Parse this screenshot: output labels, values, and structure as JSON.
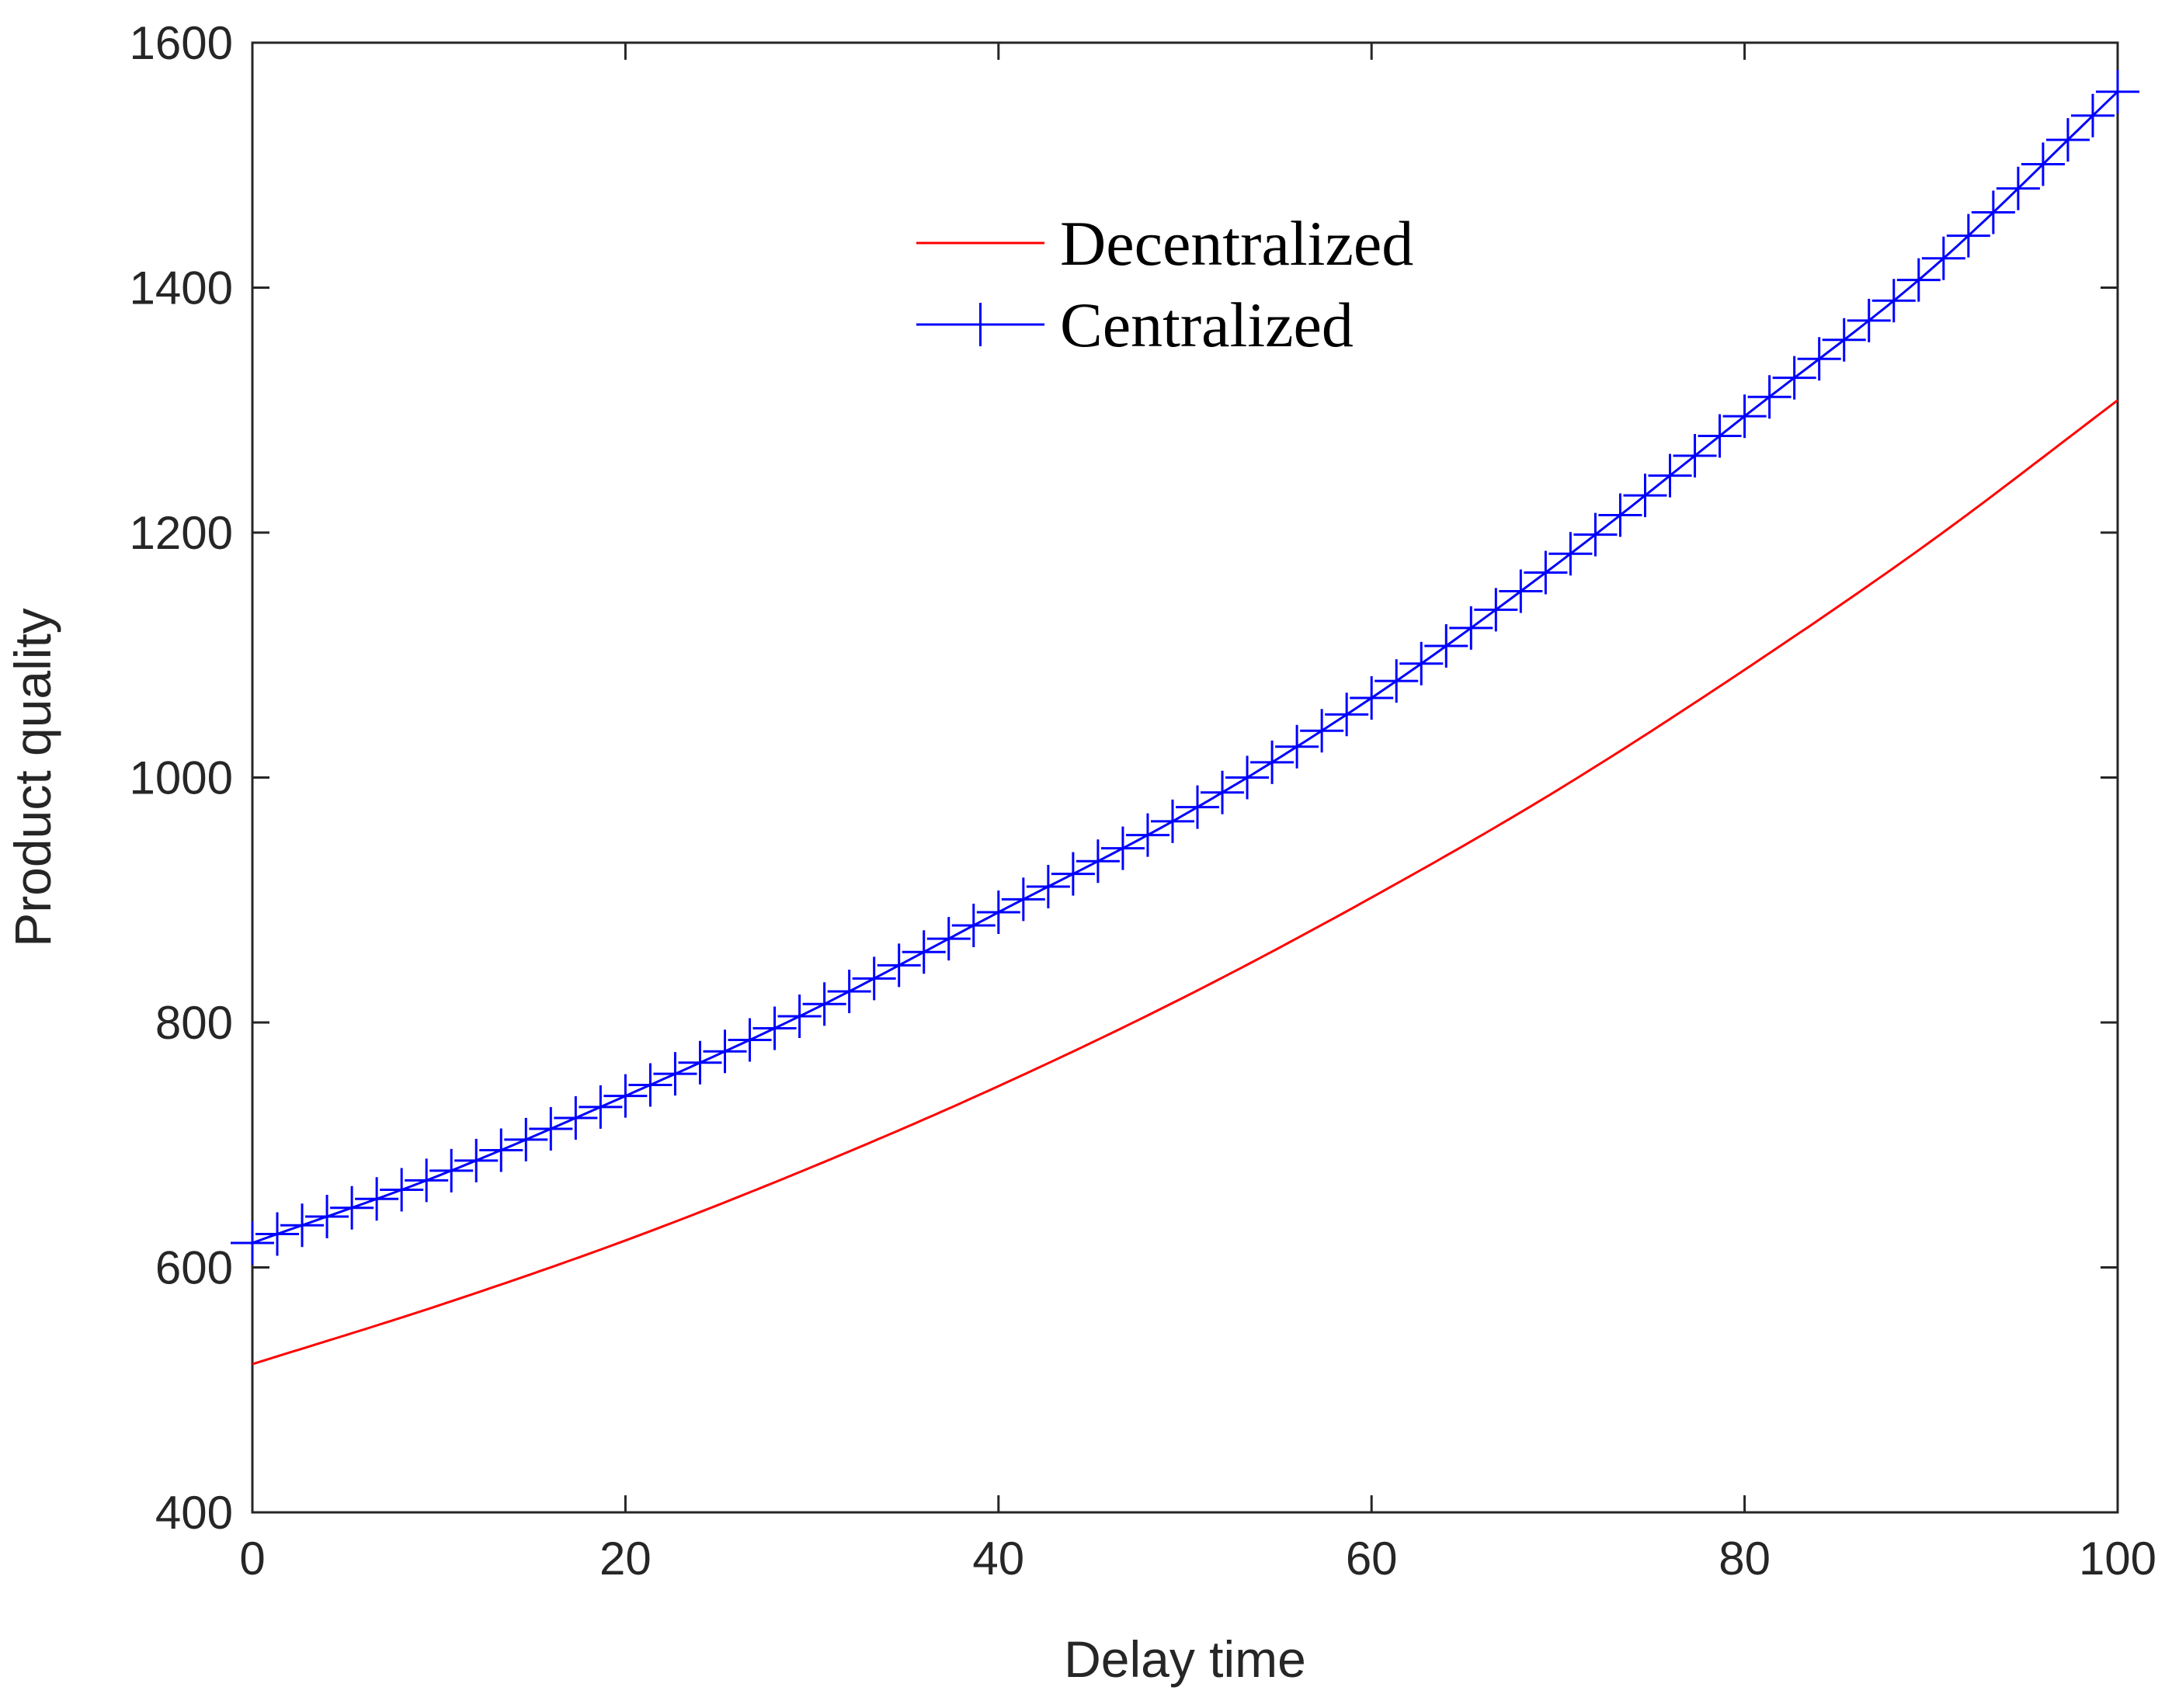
{
  "chart_data": {
    "type": "line",
    "title": "",
    "xlabel": "Delay time",
    "ylabel": "Product quality",
    "xlim": [
      0,
      100
    ],
    "ylim": [
      400,
      1600
    ],
    "xticks": [
      0,
      20,
      40,
      60,
      80,
      100
    ],
    "yticks": [
      400,
      600,
      800,
      1000,
      1200,
      1400,
      1600
    ],
    "xtick_labels": [
      "0",
      "20",
      "40",
      "60",
      "80",
      "100"
    ],
    "ytick_labels": [
      "400",
      "600",
      "800",
      "1000",
      "1200",
      "1400",
      "1600"
    ],
    "grid": false,
    "legend_position": "upper-center",
    "series": [
      {
        "name": "Decentralized",
        "color": "#ff0000",
        "marker": "none",
        "x": [
          0,
          10,
          20,
          30,
          40,
          50,
          60,
          70,
          80,
          90,
          100
        ],
        "y": [
          521,
          569,
          622,
          682,
          748,
          821,
          902,
          990,
          1088,
          1193,
          1308
        ]
      },
      {
        "name": "Centralized",
        "color": "#0000ff",
        "marker": "plus",
        "x": [
          0,
          10,
          20,
          30,
          40,
          50,
          60,
          70,
          80,
          90,
          100
        ],
        "y": [
          620,
          675,
          740,
          810,
          890,
          970,
          1065,
          1175,
          1295,
          1415,
          1560
        ]
      }
    ]
  }
}
